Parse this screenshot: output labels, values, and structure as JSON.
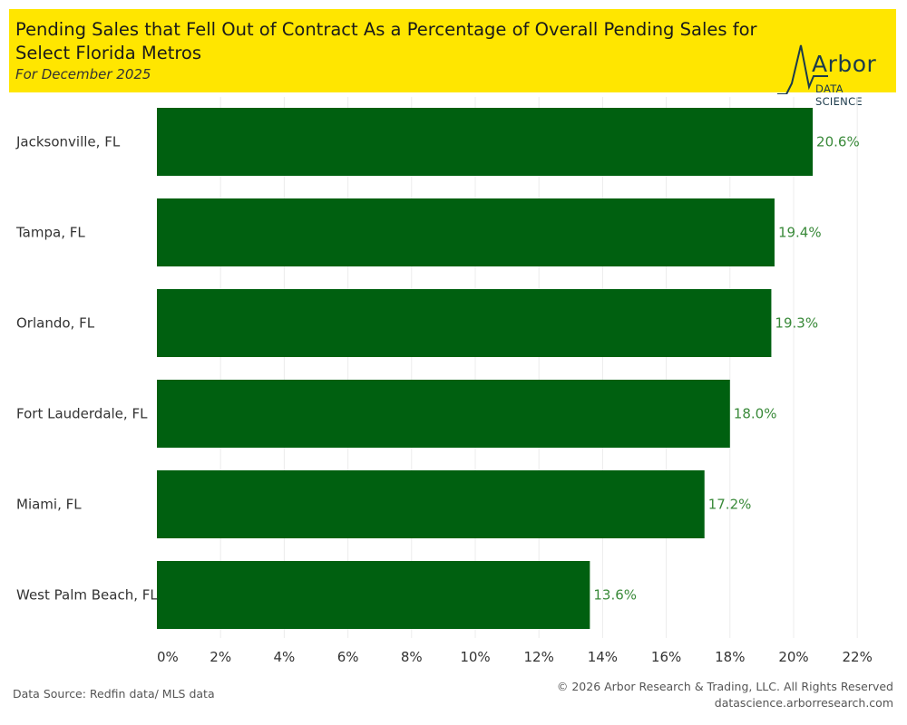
{
  "header": {
    "title": "Pending Sales that Fell Out of Contract As a Percentage of Overall Pending Sales for Select Florida Metros",
    "subtitle": "For December 2025"
  },
  "logo": {
    "wordmark": "Arbor",
    "tagline": "DATA SCIENCE"
  },
  "colors": {
    "header_bg": "#ffe600",
    "bar": "#006010",
    "value_label": "#3a8a3a",
    "grid": "#ececec"
  },
  "chart_data": {
    "type": "bar",
    "orientation": "horizontal",
    "title": "Pending Sales that Fell Out of Contract As a Percentage of Overall Pending Sales for Select Florida Metros",
    "categories": [
      "Jacksonville, FL",
      "Tampa, FL",
      "Orlando, FL",
      "Fort Lauderdale, FL",
      "Miami, FL",
      "West Palm Beach, FL"
    ],
    "values": [
      20.6,
      19.4,
      19.3,
      18.0,
      17.2,
      13.6
    ],
    "value_labels": [
      "20.6%",
      "19.4%",
      "19.3%",
      "18.0%",
      "17.2%",
      "13.6%"
    ],
    "xlim": [
      0,
      22
    ],
    "xticks": [
      0,
      2,
      4,
      6,
      8,
      10,
      12,
      14,
      16,
      18,
      20,
      22
    ],
    "xtick_labels": [
      "0%",
      "2%",
      "4%",
      "6%",
      "8%",
      "10%",
      "12%",
      "14%",
      "16%",
      "18%",
      "20%",
      "22%"
    ],
    "xlabel": "",
    "ylabel": "",
    "grid": "vertical"
  },
  "footer": {
    "source": "Data Source: Redfin data/ MLS data",
    "copyright": "© 2026 Arbor Research & Trading, LLC. All Rights Reserved",
    "url": "datascience.arborresearch.com"
  }
}
